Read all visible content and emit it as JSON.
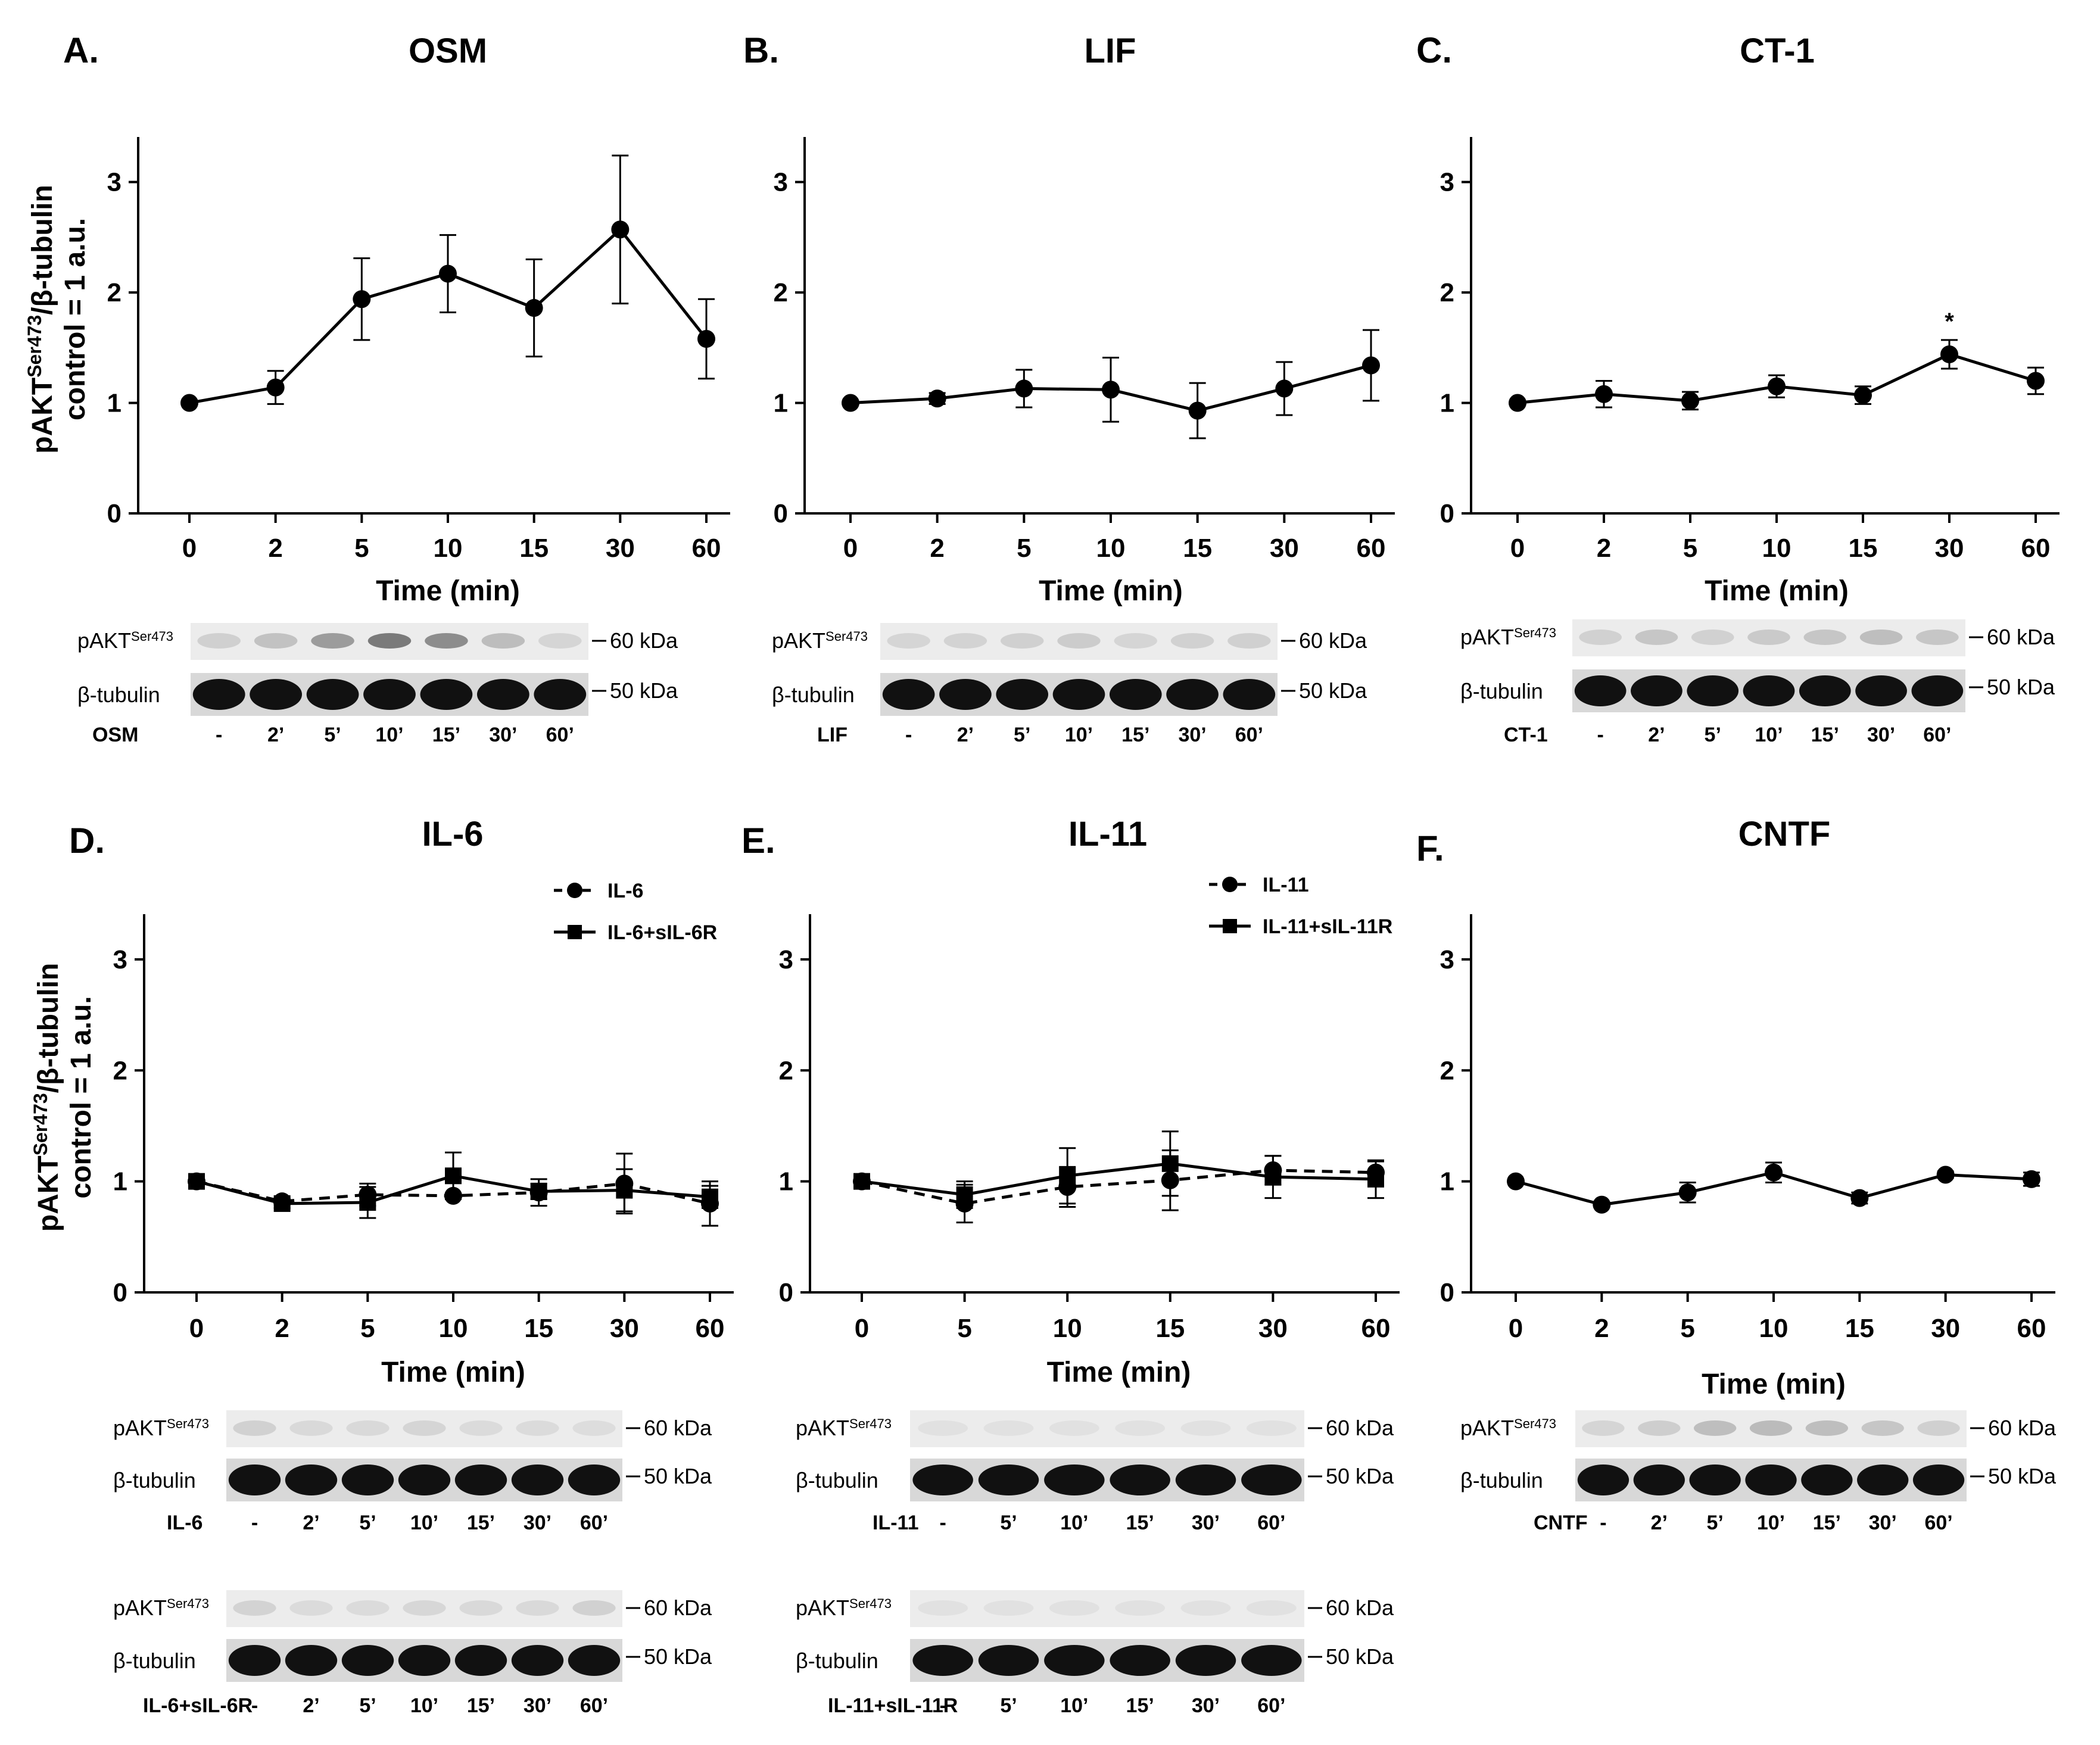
{
  "figure": {
    "ylabel_line1_pre": "pAKT",
    "ylabel_line1_sup": "Ser473",
    "ylabel_line1_post": "/β-tubulin",
    "ylabel_line2": "control = 1 a.u.",
    "xlabel": "Time (min)",
    "kda_upper": "60 kDa",
    "kda_lower": "50 kDa",
    "blot_target_pre": "pAKT",
    "blot_target_sup": "Ser473",
    "blot_loading": "β-tubulin",
    "line_color": "#000000",
    "blot_band_color": "#111111"
  },
  "chart_data": [
    {
      "id": "A",
      "letter": "A.",
      "title": "OSM",
      "type": "line",
      "xlabel": "Time (min)",
      "ylabel": "pAKTSer473/β-tubulin control = 1 a.u.",
      "categories": [
        "0",
        "2",
        "5",
        "10",
        "15",
        "30",
        "60"
      ],
      "ylim": [
        0,
        3.3
      ],
      "yticks": [
        "0",
        "1",
        "2",
        "3"
      ],
      "series": [
        {
          "name": "OSM",
          "style": "solid",
          "marker": "circle",
          "values": [
            1.0,
            1.14,
            1.94,
            2.17,
            1.86,
            2.57,
            1.58
          ],
          "errors": [
            0,
            0.15,
            0.37,
            0.35,
            0.44,
            0.67,
            0.36
          ]
        }
      ],
      "blots": [
        {
          "treatment": "OSM",
          "lanes": [
            "-",
            "2’",
            "5’",
            "10’",
            "15’",
            "30’",
            "60’"
          ],
          "intensity": [
            0.15,
            0.22,
            0.42,
            0.6,
            0.5,
            0.25,
            0.12
          ]
        }
      ]
    },
    {
      "id": "B",
      "letter": "B.",
      "title": "LIF",
      "type": "line",
      "xlabel": "Time (min)",
      "categories": [
        "0",
        "2",
        "5",
        "10",
        "15",
        "30",
        "60"
      ],
      "ylim": [
        0,
        3.3
      ],
      "yticks": [
        "0",
        "1",
        "2",
        "3"
      ],
      "series": [
        {
          "name": "LIF",
          "style": "solid",
          "marker": "circle",
          "values": [
            1.0,
            1.04,
            1.13,
            1.12,
            0.93,
            1.13,
            1.34
          ],
          "errors": [
            0,
            0.05,
            0.17,
            0.29,
            0.25,
            0.24,
            0.32
          ]
        }
      ],
      "blots": [
        {
          "treatment": "LIF",
          "lanes": [
            "-",
            "2’",
            "5’",
            "10’",
            "15’",
            "30’",
            "60’"
          ],
          "intensity": [
            0.12,
            0.13,
            0.15,
            0.17,
            0.12,
            0.14,
            0.15
          ]
        }
      ]
    },
    {
      "id": "C",
      "letter": "C.",
      "title": "CT-1",
      "type": "line",
      "xlabel": "Time (min)",
      "categories": [
        "0",
        "2",
        "5",
        "10",
        "15",
        "30",
        "60"
      ],
      "ylim": [
        0,
        3.3
      ],
      "yticks": [
        "0",
        "1",
        "2",
        "3"
      ],
      "significance": [
        {
          "index": 5,
          "label": "*"
        }
      ],
      "series": [
        {
          "name": "CT-1",
          "style": "solid",
          "marker": "circle",
          "values": [
            1.0,
            1.08,
            1.02,
            1.15,
            1.07,
            1.44,
            1.2
          ],
          "errors": [
            0,
            0.12,
            0.08,
            0.1,
            0.08,
            0.13,
            0.12
          ]
        }
      ],
      "blots": [
        {
          "treatment": "CT-1",
          "lanes": [
            "-",
            "2’",
            "5’",
            "10’",
            "15’",
            "30’",
            "60’"
          ],
          "intensity": [
            0.14,
            0.2,
            0.14,
            0.18,
            0.2,
            0.24,
            0.2
          ]
        }
      ]
    },
    {
      "id": "D",
      "letter": "D.",
      "title": "IL-6",
      "type": "line",
      "xlabel": "Time (min)",
      "categories": [
        "0",
        "2",
        "5",
        "10",
        "15",
        "30",
        "60"
      ],
      "ylim": [
        0,
        3.3
      ],
      "yticks": [
        "0",
        "1",
        "2",
        "3"
      ],
      "legend": "top-right",
      "series": [
        {
          "name": "IL-6",
          "style": "dashed",
          "marker": "circle",
          "values": [
            1.0,
            0.82,
            0.88,
            0.87,
            0.9,
            0.98,
            0.8
          ],
          "errors": [
            0,
            0.03,
            0.1,
            0.0,
            0.12,
            0.27,
            0.2
          ]
        },
        {
          "name": "IL-6+sIL-6R",
          "style": "solid",
          "marker": "square",
          "values": [
            1.0,
            0.8,
            0.81,
            1.05,
            0.91,
            0.92,
            0.86
          ],
          "errors": [
            0,
            0.04,
            0.14,
            0.21,
            0.07,
            0.19,
            0.1
          ]
        }
      ],
      "blots": [
        {
          "treatment": "IL-6",
          "lanes": [
            "-",
            "2’",
            "5’",
            "10’",
            "15’",
            "30’",
            "60’"
          ],
          "intensity": [
            0.14,
            0.1,
            0.1,
            0.12,
            0.09,
            0.09,
            0.08
          ]
        },
        {
          "treatment": "IL-6+sIL-6R",
          "lanes": [
            "-",
            "2’",
            "5’",
            "10’",
            "15’",
            "30’",
            "60’"
          ],
          "intensity": [
            0.13,
            0.09,
            0.09,
            0.11,
            0.1,
            0.1,
            0.14
          ]
        }
      ]
    },
    {
      "id": "E",
      "letter": "E.",
      "title": "IL-11",
      "type": "line",
      "xlabel": "Time (min)",
      "categories": [
        "0",
        "5",
        "10",
        "15",
        "30",
        "60"
      ],
      "ylim": [
        0,
        3.3
      ],
      "yticks": [
        "0",
        "1",
        "2",
        "3"
      ],
      "legend": "top-right",
      "series": [
        {
          "name": "IL-11",
          "style": "dashed",
          "marker": "circle",
          "values": [
            1.0,
            0.8,
            0.95,
            1.01,
            1.1,
            1.08
          ],
          "errors": [
            0,
            0.17,
            0.18,
            0.27,
            0.13,
            0.1
          ]
        },
        {
          "name": "IL-11+sIL-11R",
          "style": "solid",
          "marker": "square",
          "values": [
            1.0,
            0.88,
            1.05,
            1.16,
            1.04,
            1.02
          ],
          "errors": [
            0,
            0.12,
            0.25,
            0.29,
            0.19,
            0.17
          ]
        }
      ],
      "blots": [
        {
          "treatment": "IL-11",
          "lanes": [
            "-",
            "5’",
            "10’",
            "15’",
            "30’",
            "60’"
          ],
          "intensity": [
            0.06,
            0.06,
            0.06,
            0.06,
            0.06,
            0.06
          ]
        },
        {
          "treatment": "IL-11+sIL-11R",
          "lanes": [
            "-",
            "5’",
            "10’",
            "15’",
            "30’",
            "60’"
          ],
          "intensity": [
            0.06,
            0.06,
            0.06,
            0.06,
            0.06,
            0.06
          ]
        }
      ]
    },
    {
      "id": "F",
      "letter": "F.",
      "title": "CNTF",
      "type": "line",
      "xlabel": "Time (min)",
      "categories": [
        "0",
        "2",
        "5",
        "10",
        "15",
        "30",
        "60"
      ],
      "ylim": [
        0,
        3.3
      ],
      "yticks": [
        "0",
        "1",
        "2",
        "3"
      ],
      "series": [
        {
          "name": "CNTF",
          "style": "solid",
          "marker": "circle",
          "values": [
            1.0,
            0.79,
            0.9,
            1.08,
            0.85,
            1.06,
            1.02
          ],
          "errors": [
            0,
            0.02,
            0.09,
            0.09,
            0.05,
            0.03,
            0.06
          ]
        }
      ],
      "blots": [
        {
          "treatment": "CNTF",
          "lanes": [
            "-",
            "2’",
            "5’",
            "10’",
            "15’",
            "30’",
            "60’"
          ],
          "intensity": [
            0.12,
            0.16,
            0.24,
            0.26,
            0.24,
            0.2,
            0.15
          ]
        }
      ]
    }
  ]
}
